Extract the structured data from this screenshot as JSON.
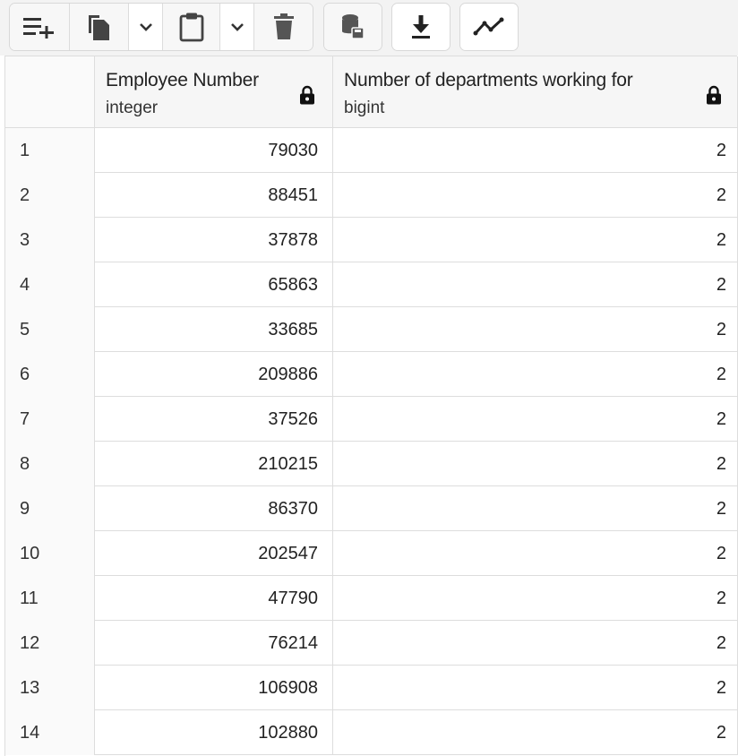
{
  "toolbar": {
    "buttons": [
      {
        "name": "add-row-icon"
      },
      {
        "name": "copy-icon"
      },
      {
        "name": "copy-options-chevron-icon"
      },
      {
        "name": "paste-icon"
      },
      {
        "name": "paste-options-chevron-icon"
      },
      {
        "name": "delete-icon"
      },
      {
        "name": "save-data-icon"
      },
      {
        "name": "download-icon"
      },
      {
        "name": "graph-visualiser-icon"
      }
    ]
  },
  "grid": {
    "columns": [
      {
        "name": "Employee Number",
        "type": "integer"
      },
      {
        "name": "Number of departments working for",
        "type": "bigint"
      }
    ],
    "rows": [
      {
        "n": "1",
        "emp": "79030",
        "dep": "2"
      },
      {
        "n": "2",
        "emp": "88451",
        "dep": "2"
      },
      {
        "n": "3",
        "emp": "37878",
        "dep": "2"
      },
      {
        "n": "4",
        "emp": "65863",
        "dep": "2"
      },
      {
        "n": "5",
        "emp": "33685",
        "dep": "2"
      },
      {
        "n": "6",
        "emp": "209886",
        "dep": "2"
      },
      {
        "n": "7",
        "emp": "37526",
        "dep": "2"
      },
      {
        "n": "8",
        "emp": "210215",
        "dep": "2"
      },
      {
        "n": "9",
        "emp": "86370",
        "dep": "2"
      },
      {
        "n": "10",
        "emp": "202547",
        "dep": "2"
      },
      {
        "n": "11",
        "emp": "47790",
        "dep": "2"
      },
      {
        "n": "12",
        "emp": "76214",
        "dep": "2"
      },
      {
        "n": "13",
        "emp": "106908",
        "dep": "2"
      },
      {
        "n": "14",
        "emp": "102880",
        "dep": "2"
      }
    ]
  },
  "colors": {
    "icon": "#333333",
    "border": "#dddddd",
    "header_bg": "#f6f6f6"
  }
}
